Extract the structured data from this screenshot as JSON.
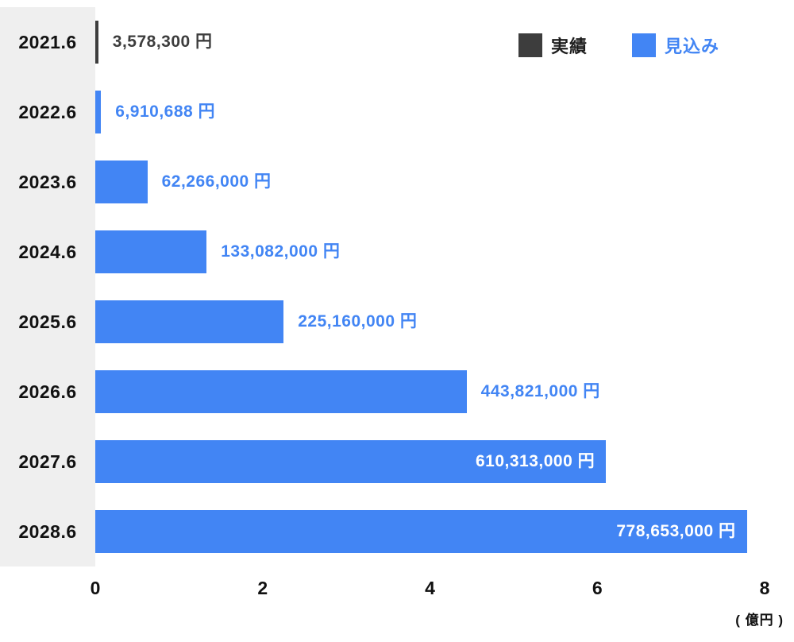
{
  "chart_data": {
    "type": "bar",
    "orientation": "horizontal",
    "categories": [
      "2021.6",
      "2022.6",
      "2023.6",
      "2024.6",
      "2025.6",
      "2026.6",
      "2027.6",
      "2028.6"
    ],
    "series_keys": [
      "actual",
      "forecast",
      "forecast",
      "forecast",
      "forecast",
      "forecast",
      "forecast",
      "forecast"
    ],
    "values_yen": [
      3578300,
      6910688,
      62266000,
      133082000,
      225160000,
      443821000,
      610313000,
      778653000
    ],
    "value_labels": [
      "3,578,300 円",
      "6,910,688 円",
      "62,266,000 円",
      "133,082,000 円",
      "225,160,000 円",
      "443,821,000 円",
      "610,313,000 円",
      "778,653,000 円"
    ],
    "axis": {
      "min_yen": 0,
      "max_yen": 800000000,
      "ticks": [
        {
          "label": "0",
          "value_yen": 0
        },
        {
          "label": "2",
          "value_yen": 200000000
        },
        {
          "label": "4",
          "value_yen": 400000000
        },
        {
          "label": "6",
          "value_yen": 600000000
        },
        {
          "label": "8",
          "value_yen": 800000000
        }
      ],
      "unit_label": "( 億円 )"
    },
    "legend": [
      {
        "key": "actual",
        "label": "実績"
      },
      {
        "key": "forecast",
        "label": "見込み"
      }
    ],
    "colors": {
      "actual": "#3d3d3d",
      "forecast": "#4285f4",
      "inside_label": "#ffffff",
      "actual_label_text": "#3d3d3d",
      "forecast_label_text": "#4285f4",
      "legend_actual_text": "#1d1d1d",
      "legend_forecast_text": "#4285f4",
      "gutter_background": "#efefef"
    }
  }
}
